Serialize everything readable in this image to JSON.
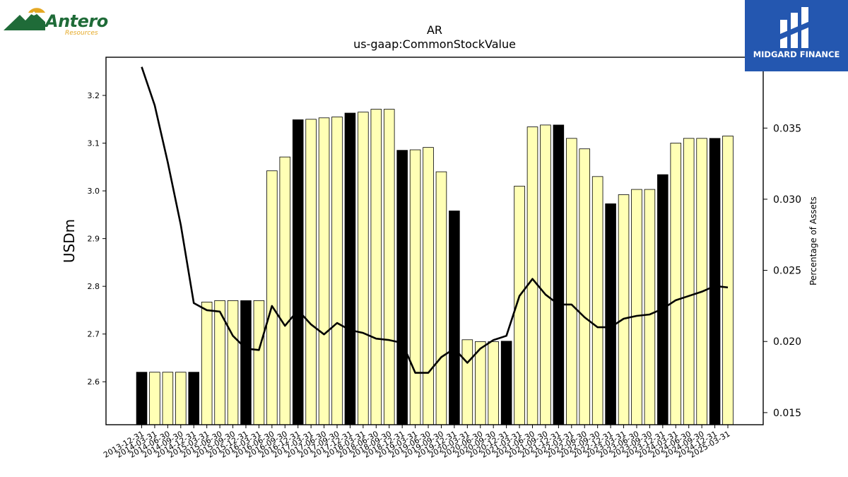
{
  "logos": {
    "left": {
      "name": "Antero",
      "sub": "Resources"
    },
    "right": {
      "name": "MIDGARD FINANCE"
    }
  },
  "chart_data": {
    "type": "bar",
    "title": "AR",
    "subtitle": "us-gaap:CommonStockValue",
    "ylabel": "USDm",
    "y2label": "Percentage of Assets",
    "ylim": [
      2.51,
      3.28
    ],
    "y2lim": [
      0.01415,
      0.03998
    ],
    "yticks": [
      "2.6",
      "2.7",
      "2.8",
      "2.9",
      "3.0",
      "3.1",
      "3.2"
    ],
    "y2ticks": [
      "0.015",
      "0.020",
      "0.025",
      "0.030",
      "0.035"
    ],
    "categories": [
      "2013-12-31",
      "2014-03-31",
      "2014-06-30",
      "2014-09-30",
      "2014-12-31",
      "2015-03-31",
      "2015-06-30",
      "2015-09-30",
      "2015-12-31",
      "2016-03-31",
      "2016-06-30",
      "2016-09-30",
      "2016-12-31",
      "2017-03-31",
      "2017-06-30",
      "2017-09-30",
      "2017-12-31",
      "2018-03-31",
      "2018-06-30",
      "2018-09-30",
      "2018-12-31",
      "2019-03-31",
      "2019-06-30",
      "2019-09-30",
      "2019-12-31",
      "2020-03-31",
      "2020-06-30",
      "2020-09-30",
      "2020-12-31",
      "2021-03-31",
      "2021-06-30",
      "2021-09-30",
      "2021-12-31",
      "2022-03-31",
      "2022-06-30",
      "2022-09-30",
      "2022-12-31",
      "2023-03-31",
      "2023-06-30",
      "2023-09-30",
      "2023-12-31",
      "2024-03-31",
      "2024-06-30",
      "2024-09-30",
      "2024-12-31",
      "2025-03-31"
    ],
    "series": [
      {
        "type": "bar",
        "values": [
          2.62,
          2.62,
          2.62,
          2.62,
          2.62,
          2.767,
          2.77,
          2.77,
          2.77,
          2.77,
          3.042,
          3.071,
          3.149,
          3.15,
          3.153,
          3.155,
          3.163,
          3.165,
          3.171,
          3.171,
          3.085,
          3.086,
          3.091,
          3.04,
          2.958,
          2.688,
          2.684,
          2.684,
          2.685,
          3.01,
          3.134,
          3.138,
          3.138,
          3.11,
          3.088,
          3.03,
          2.973,
          2.992,
          3.003,
          3.003,
          3.034,
          3.1,
          3.11,
          3.11,
          3.11,
          3.115
        ],
        "fy_end_highlight": [
          true,
          false,
          false,
          false,
          true,
          false,
          false,
          false,
          true,
          false,
          false,
          false,
          true,
          false,
          false,
          false,
          true,
          false,
          false,
          false,
          true,
          false,
          false,
          false,
          true,
          false,
          false,
          false,
          true,
          false,
          false,
          false,
          true,
          false,
          false,
          false,
          true,
          false,
          false,
          false,
          true,
          false,
          false,
          false,
          true,
          false
        ]
      },
      {
        "type": "line",
        "axis": "secondary",
        "values": [
          0.0393,
          0.0366,
          0.0326,
          0.0282,
          0.0227,
          0.0222,
          0.0221,
          0.0204,
          0.0195,
          0.0194,
          0.0225,
          0.0211,
          0.0222,
          0.0212,
          0.0205,
          0.0213,
          0.0208,
          0.0206,
          0.0202,
          0.0201,
          0.0199,
          0.0178,
          0.0178,
          0.0189,
          0.0195,
          0.0185,
          0.0195,
          0.0201,
          0.0204,
          0.0232,
          0.0244,
          0.0233,
          0.0226,
          0.0226,
          0.0217,
          0.021,
          0.021,
          0.0216,
          0.0218,
          0.0219,
          0.0223,
          0.0229,
          0.0232,
          0.0235,
          0.0239,
          0.0238
        ]
      }
    ],
    "colors": {
      "bar": "#ffffb5",
      "bar_highlight": "#000000",
      "bar_edge": "#000000",
      "line": "#000000"
    },
    "grid": false,
    "legend": "none"
  }
}
